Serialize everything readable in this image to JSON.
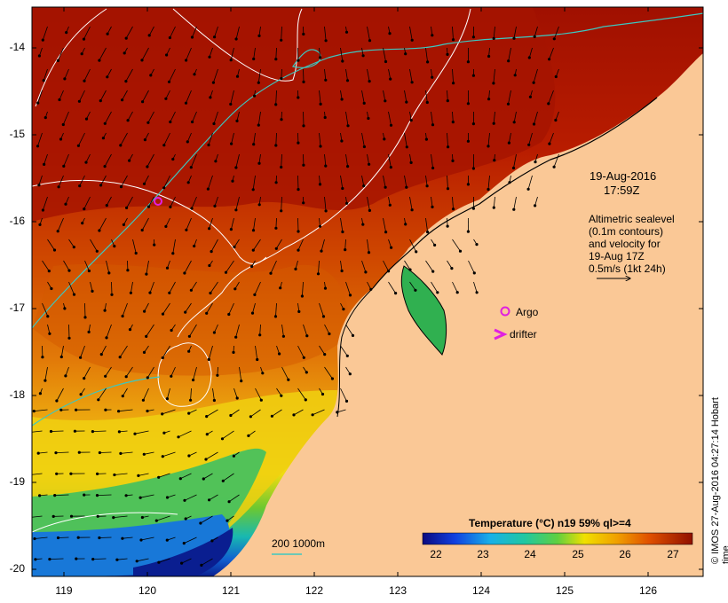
{
  "map": {
    "y_ticks": [
      "-14",
      "-15",
      "-16",
      "-17",
      "-18",
      "-19",
      "-20"
    ],
    "x_ticks": [
      "119",
      "120",
      "121",
      "122",
      "123",
      "124",
      "125",
      "126"
    ],
    "timestamp": {
      "date": "19-Aug-2016",
      "time": "17:59Z"
    },
    "altimetry_note": [
      "Altimetric sealevel",
      "(0.1m contours)",
      "and velocity for",
      "19-Aug 17Z",
      "0.5m/s (1kt 24h)"
    ],
    "legend": {
      "argo": "Argo",
      "drifter": "drifter"
    },
    "isobath_label": "200  1000m",
    "colorbar": {
      "title": "Temperature (°C) n19 59% ql>=4",
      "ticks": [
        "22",
        "23",
        "24",
        "25",
        "26",
        "27"
      ]
    },
    "credit": "© IMOS 27-Aug-2016 04:27:14 Hobart time",
    "colors": {
      "land": "#fac896",
      "warm": "#a01000",
      "mid": "#e07000",
      "cool": "#f2dc00",
      "cold": "#20b040",
      "coldest": "#0a2090",
      "isobath": "#3cc8c0",
      "marker": "#e020e0"
    }
  }
}
